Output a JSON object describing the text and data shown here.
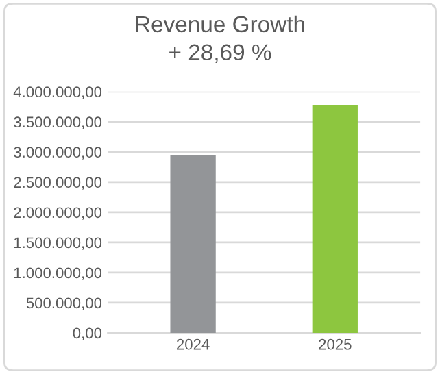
{
  "chart_data": {
    "type": "bar",
    "title": "Revenue Growth",
    "subtitle": "+ 28,69 %",
    "categories": [
      "2024",
      "2025"
    ],
    "values": [
      2940000,
      3780000
    ],
    "colors": [
      "#939598",
      "#8dc63f"
    ],
    "ylim": [
      0,
      4000000
    ],
    "yticks": [
      {
        "value": 0,
        "label": "0,00"
      },
      {
        "value": 500000,
        "label": "500.000,00"
      },
      {
        "value": 1000000,
        "label": "1.000.000,00"
      },
      {
        "value": 1500000,
        "label": "1.500.000,00"
      },
      {
        "value": 2000000,
        "label": "2.000.000,00"
      },
      {
        "value": 2500000,
        "label": "2.500.000,00"
      },
      {
        "value": 3000000,
        "label": "3.000.000,00"
      },
      {
        "value": 3500000,
        "label": "3.500.000,00"
      },
      {
        "value": 4000000,
        "label": "4.000.000,00"
      }
    ],
    "grid": "y"
  }
}
